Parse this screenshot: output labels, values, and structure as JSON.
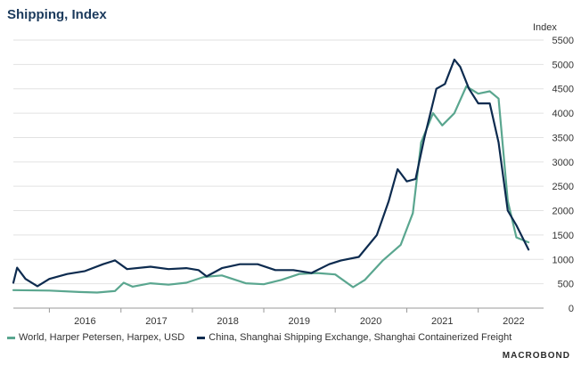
{
  "page": {
    "title": "Shipping, Index",
    "unit": "Index",
    "brand": "MACROBOND"
  },
  "chart_data": {
    "type": "line",
    "title": "Shipping, Index",
    "ylabel": "Index",
    "ylim": [
      0,
      5500
    ],
    "yticks": [
      0,
      500,
      1000,
      1500,
      2000,
      2500,
      3000,
      3500,
      4000,
      4500,
      5000,
      5500
    ],
    "xlim": [
      "2015-07-01",
      "2022-12-01"
    ],
    "xticks": [
      "2016",
      "2017",
      "2018",
      "2019",
      "2020",
      "2021",
      "2022"
    ],
    "grid": true,
    "legend_position": "bottom",
    "series": [
      {
        "name": "World, Harper Petersen, Harpex, USD",
        "color": "#5aa68f",
        "points": [
          [
            "2015-07-01",
            370
          ],
          [
            "2016-01-01",
            360
          ],
          [
            "2016-06-01",
            330
          ],
          [
            "2016-09-01",
            320
          ],
          [
            "2016-12-01",
            350
          ],
          [
            "2017-01-15",
            520
          ],
          [
            "2017-03-01",
            440
          ],
          [
            "2017-06-01",
            510
          ],
          [
            "2017-09-01",
            480
          ],
          [
            "2017-12-01",
            520
          ],
          [
            "2018-03-01",
            640
          ],
          [
            "2018-06-01",
            670
          ],
          [
            "2018-10-01",
            510
          ],
          [
            "2019-01-01",
            490
          ],
          [
            "2019-04-01",
            580
          ],
          [
            "2019-07-01",
            700
          ],
          [
            "2019-10-01",
            720
          ],
          [
            "2020-01-01",
            690
          ],
          [
            "2020-04-01",
            430
          ],
          [
            "2020-06-01",
            580
          ],
          [
            "2020-09-01",
            980
          ],
          [
            "2020-12-01",
            1300
          ],
          [
            "2021-02-01",
            1950
          ],
          [
            "2021-03-15",
            3400
          ],
          [
            "2021-05-15",
            4000
          ],
          [
            "2021-07-01",
            3750
          ],
          [
            "2021-09-01",
            4000
          ],
          [
            "2021-11-01",
            4550
          ],
          [
            "2022-01-01",
            4400
          ],
          [
            "2022-03-01",
            4450
          ],
          [
            "2022-04-15",
            4300
          ],
          [
            "2022-06-01",
            2200
          ],
          [
            "2022-07-15",
            1450
          ],
          [
            "2022-09-15",
            1350
          ]
        ]
      },
      {
        "name": "China, Shanghai Shipping Exchange, Shanghai Containerized Freight",
        "color": "#0d2b4f",
        "points": [
          [
            "2015-07-01",
            520
          ],
          [
            "2015-07-20",
            830
          ],
          [
            "2015-09-01",
            600
          ],
          [
            "2015-11-01",
            450
          ],
          [
            "2016-01-01",
            600
          ],
          [
            "2016-04-01",
            700
          ],
          [
            "2016-07-01",
            760
          ],
          [
            "2016-10-01",
            900
          ],
          [
            "2016-12-01",
            980
          ],
          [
            "2017-02-01",
            800
          ],
          [
            "2017-06-01",
            850
          ],
          [
            "2017-09-01",
            800
          ],
          [
            "2017-12-01",
            820
          ],
          [
            "2018-02-01",
            780
          ],
          [
            "2018-03-15",
            650
          ],
          [
            "2018-06-01",
            820
          ],
          [
            "2018-09-01",
            900
          ],
          [
            "2018-12-01",
            900
          ],
          [
            "2019-03-01",
            780
          ],
          [
            "2019-06-01",
            780
          ],
          [
            "2019-09-01",
            720
          ],
          [
            "2019-12-01",
            900
          ],
          [
            "2020-02-01",
            980
          ],
          [
            "2020-05-01",
            1050
          ],
          [
            "2020-08-01",
            1500
          ],
          [
            "2020-10-01",
            2200
          ],
          [
            "2020-11-15",
            2850
          ],
          [
            "2021-01-01",
            2600
          ],
          [
            "2021-02-15",
            2650
          ],
          [
            "2021-04-01",
            3500
          ],
          [
            "2021-06-01",
            4500
          ],
          [
            "2021-07-15",
            4600
          ],
          [
            "2021-09-01",
            5100
          ],
          [
            "2021-10-01",
            4950
          ],
          [
            "2021-11-15",
            4500
          ],
          [
            "2022-01-01",
            4200
          ],
          [
            "2022-03-01",
            4200
          ],
          [
            "2022-04-15",
            3400
          ],
          [
            "2022-06-01",
            2000
          ],
          [
            "2022-07-15",
            1700
          ],
          [
            "2022-09-15",
            1200
          ]
        ]
      }
    ]
  }
}
